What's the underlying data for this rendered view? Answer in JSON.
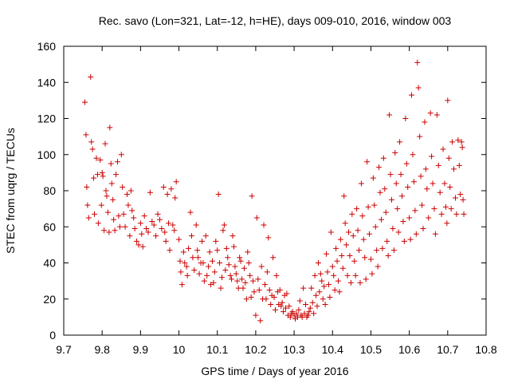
{
  "chart_data": {
    "type": "scatter",
    "title": "Rec. savo (Lon=321, Lat=-12, h=HE), days 009-010, 2016, window 003",
    "xlabel": "GPS time / Days of year 2016",
    "ylabel": "STEC from uqrg / TECUs",
    "xlim": [
      9.7,
      10.8
    ],
    "ylim": [
      0,
      160
    ],
    "xticks": [
      "9.7",
      "9.8",
      "9.9",
      "10",
      "10.1",
      "10.2",
      "10.3",
      "10.4",
      "10.5",
      "10.6",
      "10.7",
      "10.8"
    ],
    "yticks": [
      "0",
      "20",
      "40",
      "60",
      "80",
      "100",
      "120",
      "140",
      "160"
    ],
    "grid": false,
    "marker": "+",
    "series": [
      {
        "name": "STEC",
        "color": "#cc0000",
        "points": [
          [
            9.755,
            129
          ],
          [
            9.758,
            111
          ],
          [
            9.76,
            82
          ],
          [
            9.762,
            72
          ],
          [
            9.765,
            65
          ],
          [
            9.77,
            143
          ],
          [
            9.772,
            107
          ],
          [
            9.775,
            103
          ],
          [
            9.778,
            87
          ],
          [
            9.78,
            67
          ],
          [
            9.785,
            98
          ],
          [
            9.788,
            89
          ],
          [
            9.79,
            62
          ],
          [
            9.795,
            97
          ],
          [
            9.798,
            72
          ],
          [
            9.8,
            90
          ],
          [
            9.802,
            88
          ],
          [
            9.805,
            58
          ],
          [
            9.808,
            106
          ],
          [
            9.81,
            80
          ],
          [
            9.812,
            77
          ],
          [
            9.815,
            68
          ],
          [
            9.818,
            57
          ],
          [
            9.82,
            115
          ],
          [
            9.823,
            95
          ],
          [
            9.825,
            84
          ],
          [
            9.828,
            75
          ],
          [
            9.83,
            64
          ],
          [
            9.833,
            58
          ],
          [
            9.836,
            89
          ],
          [
            9.84,
            96
          ],
          [
            9.843,
            66
          ],
          [
            9.846,
            60
          ],
          [
            9.85,
            100
          ],
          [
            9.853,
            82
          ],
          [
            9.856,
            67
          ],
          [
            9.86,
            60
          ],
          [
            9.865,
            78
          ],
          [
            9.868,
            72
          ],
          [
            9.872,
            55
          ],
          [
            9.875,
            80
          ],
          [
            9.878,
            69
          ],
          [
            9.882,
            65
          ],
          [
            9.885,
            59
          ],
          [
            9.89,
            52
          ],
          [
            9.895,
            50
          ],
          [
            9.9,
            62
          ],
          [
            9.903,
            56
          ],
          [
            9.906,
            49
          ],
          [
            9.91,
            66
          ],
          [
            9.915,
            59
          ],
          [
            9.92,
            57
          ],
          [
            9.925,
            79
          ],
          [
            9.93,
            63
          ],
          [
            9.935,
            61
          ],
          [
            9.94,
            55
          ],
          [
            9.945,
            67
          ],
          [
            9.95,
            64
          ],
          [
            9.955,
            59
          ],
          [
            9.96,
            82
          ],
          [
            9.963,
            57
          ],
          [
            9.966,
            52
          ],
          [
            9.97,
            78
          ],
          [
            9.973,
            62
          ],
          [
            9.976,
            47
          ],
          [
            9.98,
            81
          ],
          [
            9.984,
            61
          ],
          [
            9.988,
            58
          ],
          [
            9.99,
            76
          ],
          [
            9.993,
            85
          ],
          [
            10.0,
            53
          ],
          [
            10.003,
            41
          ],
          [
            10.005,
            35
          ],
          [
            10.008,
            28
          ],
          [
            10.012,
            46
          ],
          [
            10.015,
            40
          ],
          [
            10.02,
            38
          ],
          [
            10.022,
            33
          ],
          [
            10.025,
            48
          ],
          [
            10.03,
            68
          ],
          [
            10.033,
            55
          ],
          [
            10.036,
            43
          ],
          [
            10.04,
            36
          ],
          [
            10.045,
            61
          ],
          [
            10.048,
            47
          ],
          [
            10.05,
            43
          ],
          [
            10.053,
            34
          ],
          [
            10.057,
            40
          ],
          [
            10.06,
            52
          ],
          [
            10.063,
            40
          ],
          [
            10.066,
            30
          ],
          [
            10.07,
            55
          ],
          [
            10.073,
            33
          ],
          [
            10.077,
            38
          ],
          [
            10.08,
            46
          ],
          [
            10.083,
            28
          ],
          [
            10.087,
            41
          ],
          [
            10.09,
            29
          ],
          [
            10.093,
            35
          ],
          [
            10.096,
            52
          ],
          [
            10.1,
            47
          ],
          [
            10.103,
            78
          ],
          [
            10.106,
            40
          ],
          [
            10.109,
            26
          ],
          [
            10.112,
            32
          ],
          [
            10.115,
            58
          ],
          [
            10.118,
            61
          ],
          [
            10.121,
            36
          ],
          [
            10.124,
            48
          ],
          [
            10.127,
            43
          ],
          [
            10.13,
            39
          ],
          [
            10.134,
            33
          ],
          [
            10.137,
            31
          ],
          [
            10.14,
            55
          ],
          [
            10.143,
            49
          ],
          [
            10.146,
            38
          ],
          [
            10.149,
            34
          ],
          [
            10.152,
            30
          ],
          [
            10.155,
            26
          ],
          [
            10.158,
            43
          ],
          [
            10.161,
            41
          ],
          [
            10.164,
            31
          ],
          [
            10.167,
            26
          ],
          [
            10.17,
            37
          ],
          [
            10.173,
            29
          ],
          [
            10.176,
            20
          ],
          [
            10.179,
            46
          ],
          [
            10.182,
            40
          ],
          [
            10.185,
            33
          ],
          [
            10.188,
            21
          ],
          [
            10.19,
            77
          ],
          [
            10.193,
            30
          ],
          [
            10.196,
            24
          ],
          [
            10.2,
            11
          ],
          [
            10.203,
            65
          ],
          [
            10.206,
            31
          ],
          [
            10.209,
            25
          ],
          [
            10.212,
            8
          ],
          [
            10.215,
            38
          ],
          [
            10.218,
            20
          ],
          [
            10.221,
            61
          ],
          [
            10.224,
            28
          ],
          [
            10.227,
            20
          ],
          [
            10.23,
            35
          ],
          [
            10.233,
            54
          ],
          [
            10.236,
            25
          ],
          [
            10.239,
            17
          ],
          [
            10.242,
            22
          ],
          [
            10.245,
            43
          ],
          [
            10.248,
            21
          ],
          [
            10.251,
            14
          ],
          [
            10.254,
            33
          ],
          [
            10.257,
            24
          ],
          [
            10.26,
            17
          ],
          [
            10.263,
            25
          ],
          [
            10.266,
            16
          ],
          [
            10.269,
            18
          ],
          [
            10.272,
            13
          ],
          [
            10.275,
            22
          ],
          [
            10.278,
            15
          ],
          [
            10.281,
            23
          ],
          [
            10.284,
            11
          ],
          [
            10.287,
            16
          ],
          [
            10.29,
            10
          ],
          [
            10.293,
            12
          ],
          [
            10.296,
            13
          ],
          [
            10.3,
            11
          ],
          [
            10.303,
            9
          ],
          [
            10.306,
            12
          ],
          [
            10.309,
            10
          ],
          [
            10.312,
            14
          ],
          [
            10.315,
            19
          ],
          [
            10.318,
            11
          ],
          [
            10.321,
            10
          ],
          [
            10.324,
            26
          ],
          [
            10.327,
            12
          ],
          [
            10.33,
            17
          ],
          [
            10.333,
            10
          ],
          [
            10.336,
            11
          ],
          [
            10.339,
            13
          ],
          [
            10.342,
            15
          ],
          [
            10.345,
            26
          ],
          [
            10.348,
            18
          ],
          [
            10.351,
            12
          ],
          [
            10.354,
            33
          ],
          [
            10.357,
            22
          ],
          [
            10.36,
            16
          ],
          [
            10.363,
            40
          ],
          [
            10.366,
            24
          ],
          [
            10.369,
            34
          ],
          [
            10.372,
            30
          ],
          [
            10.375,
            20
          ],
          [
            10.378,
            27
          ],
          [
            10.381,
            17
          ],
          [
            10.384,
            45
          ],
          [
            10.387,
            35
          ],
          [
            10.39,
            28
          ],
          [
            10.393,
            21
          ],
          [
            10.396,
            57
          ],
          [
            10.4,
            38
          ],
          [
            10.403,
            33
          ],
          [
            10.406,
            25
          ],
          [
            10.409,
            48
          ],
          [
            10.412,
            41
          ],
          [
            10.415,
            30
          ],
          [
            10.418,
            24
          ],
          [
            10.421,
            53
          ],
          [
            10.424,
            44
          ],
          [
            10.427,
            37
          ],
          [
            10.43,
            77
          ],
          [
            10.433,
            62
          ],
          [
            10.436,
            50
          ],
          [
            10.439,
            33
          ],
          [
            10.442,
            57
          ],
          [
            10.445,
            44
          ],
          [
            10.448,
            29
          ],
          [
            10.451,
            67
          ],
          [
            10.454,
            55
          ],
          [
            10.457,
            41
          ],
          [
            10.46,
            33
          ],
          [
            10.463,
            70
          ],
          [
            10.466,
            58
          ],
          [
            10.469,
            47
          ],
          [
            10.472,
            29
          ],
          [
            10.475,
            84
          ],
          [
            10.478,
            66
          ],
          [
            10.481,
            53
          ],
          [
            10.484,
            43
          ],
          [
            10.487,
            31
          ],
          [
            10.49,
            96
          ],
          [
            10.493,
            71
          ],
          [
            10.496,
            56
          ],
          [
            10.5,
            42
          ],
          [
            10.503,
            34
          ],
          [
            10.506,
            87
          ],
          [
            10.509,
            72
          ],
          [
            10.512,
            60
          ],
          [
            10.515,
            47
          ],
          [
            10.518,
            38
          ],
          [
            10.521,
            93
          ],
          [
            10.524,
            79
          ],
          [
            10.527,
            64
          ],
          [
            10.53,
            48
          ],
          [
            10.533,
            98
          ],
          [
            10.536,
            81
          ],
          [
            10.539,
            68
          ],
          [
            10.542,
            52
          ],
          [
            10.545,
            44
          ],
          [
            10.548,
            122
          ],
          [
            10.551,
            89
          ],
          [
            10.554,
            75
          ],
          [
            10.557,
            59
          ],
          [
            10.56,
            47
          ],
          [
            10.563,
            101
          ],
          [
            10.566,
            84
          ],
          [
            10.569,
            70
          ],
          [
            10.572,
            57
          ],
          [
            10.575,
            107
          ],
          [
            10.578,
            89
          ],
          [
            10.581,
            77
          ],
          [
            10.584,
            63
          ],
          [
            10.587,
            52
          ],
          [
            10.59,
            120
          ],
          [
            10.593,
            95
          ],
          [
            10.596,
            82
          ],
          [
            10.6,
            65
          ],
          [
            10.603,
            53
          ],
          [
            10.606,
            133
          ],
          [
            10.609,
            100
          ],
          [
            10.612,
            85
          ],
          [
            10.615,
            69
          ],
          [
            10.618,
            56
          ],
          [
            10.621,
            151
          ],
          [
            10.624,
            137
          ],
          [
            10.627,
            110
          ],
          [
            10.63,
            88
          ],
          [
            10.633,
            72
          ],
          [
            10.636,
            59
          ],
          [
            10.64,
            118
          ],
          [
            10.643,
            92
          ],
          [
            10.646,
            81
          ],
          [
            10.65,
            65
          ],
          [
            10.655,
            123
          ],
          [
            10.658,
            99
          ],
          [
            10.661,
            84
          ],
          [
            10.665,
            70
          ],
          [
            10.668,
            56
          ],
          [
            10.672,
            122
          ],
          [
            10.676,
            94
          ],
          [
            10.68,
            79
          ],
          [
            10.684,
            67
          ],
          [
            10.688,
            103
          ],
          [
            10.692,
            84
          ],
          [
            10.695,
            71
          ],
          [
            10.698,
            62
          ],
          [
            10.7,
            130
          ],
          [
            10.703,
            98
          ],
          [
            10.706,
            82
          ],
          [
            10.709,
            70
          ],
          [
            10.712,
            107
          ],
          [
            10.716,
            92
          ],
          [
            10.72,
            76
          ],
          [
            10.723,
            67
          ],
          [
            10.727,
            108
          ],
          [
            10.73,
            94
          ],
          [
            10.733,
            78
          ],
          [
            10.736,
            107
          ],
          [
            10.738,
            104
          ],
          [
            10.74,
            75
          ],
          [
            10.742,
            67
          ]
        ]
      }
    ]
  }
}
